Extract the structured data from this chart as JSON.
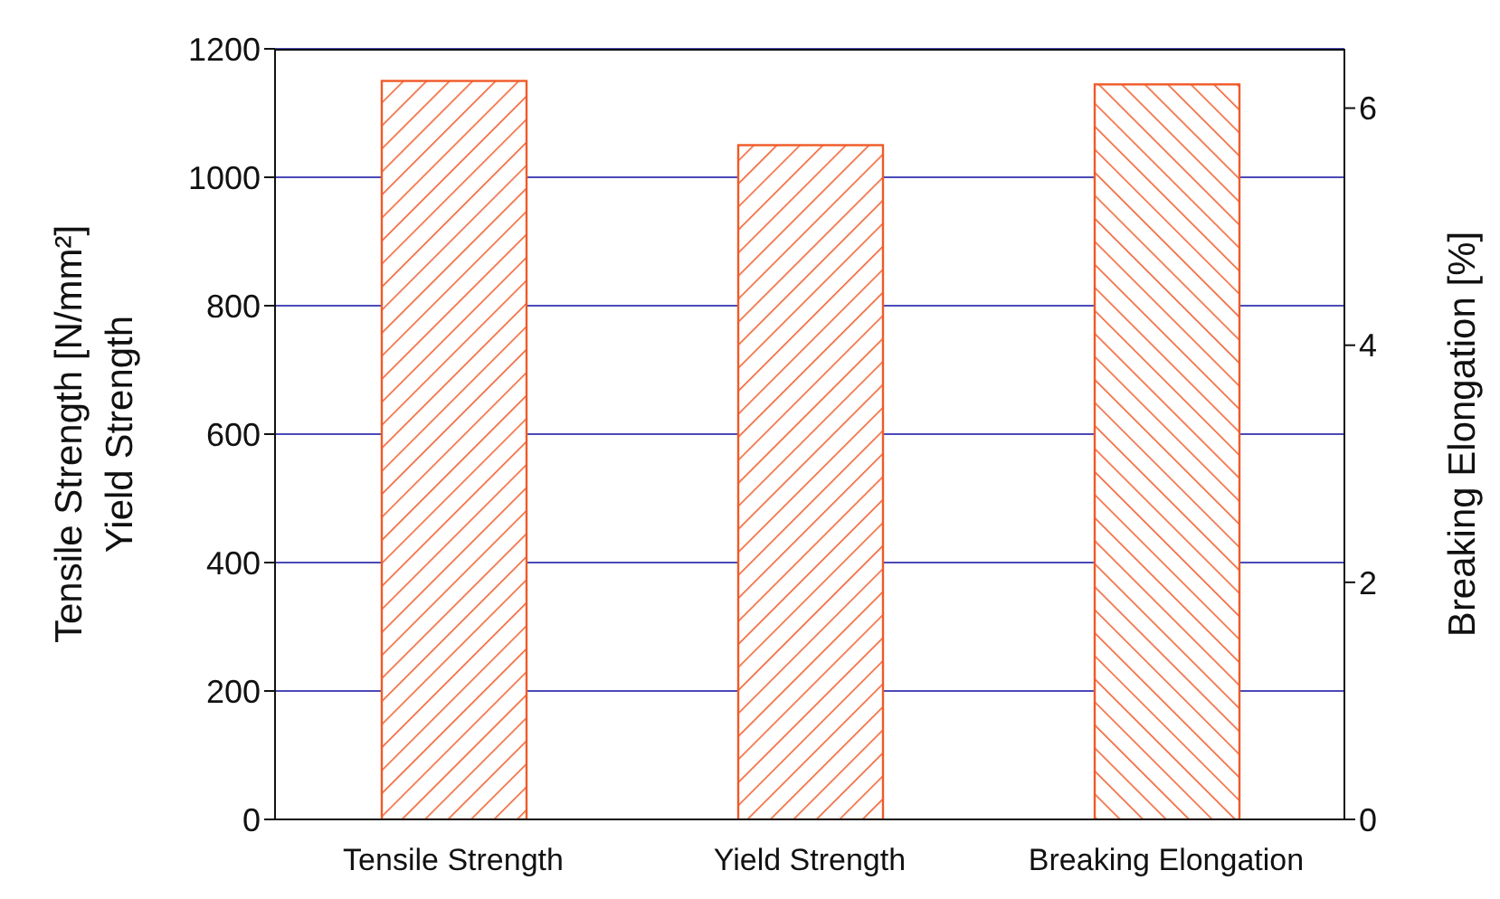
{
  "chart_data": {
    "type": "bar",
    "categories": [
      "Tensile Strength",
      "Yield Strength",
      "Breaking Elongation"
    ],
    "series": [
      {
        "color": "#f05a28",
        "values": [
          1150,
          1050,
          null
        ]
      },
      {
        "color": "#f05a28",
        "values": [
          null,
          null,
          6.2
        ],
        "axis": "y2"
      }
    ],
    "ylabel": "Tensile Strength [N/mm²]\nYield Strength",
    "y2label": "Breaking Elongation [%]",
    "ylim": [
      0,
      1200
    ],
    "yticks": [
      0,
      200,
      400,
      600,
      800,
      1000,
      1200
    ],
    "y2lim": [
      0,
      6.5
    ],
    "y2ticks": [
      0,
      2,
      4,
      6
    ],
    "grid": "y",
    "legend": false
  }
}
